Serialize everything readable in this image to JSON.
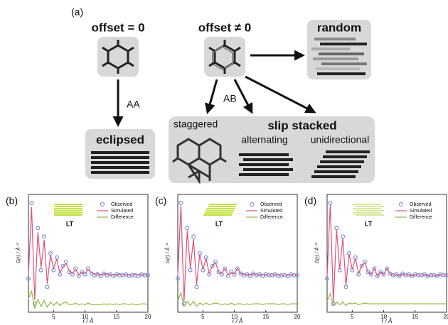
{
  "panel_label": "(a)",
  "diagram": {
    "offset_zero": "offset = 0",
    "offset_nonzero": "offset ≠ 0",
    "random": "random",
    "aa": "AA",
    "ab": "AB",
    "eclipsed": "eclipsed",
    "staggered": "staggered",
    "slip_stacked": "slip stacked",
    "alternating": "alternating",
    "unidirectional": "unidirectional"
  },
  "chart_data": [
    {
      "type": "line",
      "panel": "(b)",
      "inset_label": "LT",
      "x_label": "r / Å",
      "y_label": "G(r) / Å⁻²",
      "x": [
        1,
        1.5,
        2,
        2.5,
        3,
        3.5,
        4,
        4.5,
        5,
        5.5,
        6,
        6.5,
        7,
        7.5,
        8,
        8.5,
        9,
        9.5,
        10,
        10.5,
        11,
        11.5,
        12,
        12.5,
        13,
        13.5,
        14,
        14.5,
        15,
        15.5,
        16,
        16.5,
        17,
        17.5,
        18,
        18.5,
        19,
        19.5,
        20
      ],
      "xlim": [
        1,
        20
      ],
      "ylim": [
        -4,
        10
      ],
      "xticks": [
        5,
        10,
        15,
        20
      ],
      "series": [
        {
          "name": "Observed",
          "color": "#7b8fd6",
          "marker": "circle",
          "values": [
            0,
            9,
            -3,
            6,
            1,
            5,
            -1,
            3,
            1,
            2.5,
            0.5,
            1.5,
            2,
            0.8,
            0.5,
            1.2,
            0.3,
            0.8,
            0.5,
            1.2,
            0.6,
            0.4,
            0.5,
            0.3,
            0.6,
            0.4,
            0.5,
            0.3,
            0.5,
            0.4,
            0.4,
            0.5,
            0.3,
            0.4,
            0.4,
            0.3,
            0.5,
            0.4,
            0.4
          ]
        },
        {
          "name": "Simulated",
          "color": "#e0507a",
          "marker": "line",
          "values": [
            0.5,
            8.5,
            -2.5,
            5.5,
            1.3,
            4.6,
            -0.6,
            2.8,
            1.2,
            2.3,
            0.7,
            1.4,
            1.8,
            0.9,
            0.6,
            1.1,
            0.4,
            0.8,
            0.6,
            1.1,
            0.7,
            0.5,
            0.6,
            0.4,
            0.6,
            0.5,
            0.5,
            0.4,
            0.5,
            0.5,
            0.4,
            0.5,
            0.4,
            0.4,
            0.5,
            0.4,
            0.5,
            0.4,
            0.5
          ]
        },
        {
          "name": "Difference",
          "color": "#8dbb3c",
          "marker": "line",
          "values": [
            -2.4,
            -1.5,
            -3.5,
            -2.5,
            -3.3,
            -2.6,
            -3.4,
            -2.8,
            -3.2,
            -2.8,
            -3.2,
            -2.9,
            -2.8,
            -3.1,
            -3.1,
            -2.9,
            -3.1,
            -3,
            -3.1,
            -2.9,
            -3.1,
            -3.1,
            -3.1,
            -3.1,
            -3,
            -3.1,
            -3,
            -3.1,
            -3,
            -3.1,
            -3,
            -3,
            -3.1,
            -3,
            -3.1,
            -3.1,
            -3,
            -3,
            -3.1
          ]
        }
      ]
    },
    {
      "type": "line",
      "panel": "(c)",
      "inset_label": "LT",
      "x_label": "r / Å",
      "y_label": "G(r) / Å⁻²",
      "x": [
        1,
        1.5,
        2,
        2.5,
        3,
        3.5,
        4,
        4.5,
        5,
        5.5,
        6,
        6.5,
        7,
        7.5,
        8,
        8.5,
        9,
        9.5,
        10,
        10.5,
        11,
        11.5,
        12,
        12.5,
        13,
        13.5,
        14,
        14.5,
        15,
        15.5,
        16,
        16.5,
        17,
        17.5,
        18,
        18.5,
        19,
        19.5,
        20
      ],
      "xlim": [
        1,
        20
      ],
      "ylim": [
        -4,
        10
      ],
      "xticks": [
        5,
        10,
        15,
        20
      ],
      "series": [
        {
          "name": "Observed",
          "color": "#7b8fd6",
          "marker": "circle",
          "values": [
            0,
            9,
            -3,
            6,
            1,
            5,
            -1,
            3,
            1,
            2.5,
            0.5,
            1.5,
            2,
            0.8,
            0.5,
            1.2,
            0.3,
            0.8,
            0.5,
            1.2,
            0.6,
            0.4,
            0.5,
            0.3,
            0.6,
            0.4,
            0.5,
            0.3,
            0.5,
            0.4,
            0.4,
            0.5,
            0.3,
            0.4,
            0.4,
            0.3,
            0.5,
            0.4,
            0.4
          ]
        },
        {
          "name": "Simulated",
          "color": "#e0507a",
          "marker": "line",
          "values": [
            0.4,
            8.7,
            -2.7,
            5.7,
            1.2,
            4.7,
            -0.7,
            2.9,
            1.1,
            2.4,
            0.6,
            1.5,
            1.9,
            0.8,
            0.6,
            1.2,
            0.4,
            0.7,
            0.6,
            1.2,
            0.6,
            0.5,
            0.5,
            0.4,
            0.6,
            0.4,
            0.5,
            0.4,
            0.5,
            0.4,
            0.4,
            0.5,
            0.4,
            0.4,
            0.4,
            0.4,
            0.5,
            0.4,
            0.4
          ]
        },
        {
          "name": "Difference",
          "color": "#8dbb3c",
          "marker": "line",
          "values": [
            -2.6,
            -1.7,
            -3.3,
            -2.7,
            -3.2,
            -2.7,
            -3.3,
            -2.9,
            -3.1,
            -2.9,
            -3.1,
            -3,
            -2.9,
            -3,
            -3.1,
            -3,
            -3.1,
            -2.9,
            -3.1,
            -3,
            -3,
            -3.1,
            -3,
            -3.1,
            -3,
            -3,
            -3,
            -3.1,
            -3,
            -3,
            -3,
            -3,
            -3.1,
            -3,
            -3,
            -3.1,
            -3,
            -3,
            -3
          ]
        }
      ]
    },
    {
      "type": "line",
      "panel": "(d)",
      "inset_label": "LT",
      "x_label": "r / Å",
      "y_label": "G(r) / Å⁻²",
      "x": [
        1,
        1.5,
        2,
        2.5,
        3,
        3.5,
        4,
        4.5,
        5,
        5.5,
        6,
        6.5,
        7,
        7.5,
        8,
        8.5,
        9,
        9.5,
        10,
        10.5,
        11,
        11.5,
        12,
        12.5,
        13,
        13.5,
        14,
        14.5,
        15,
        15.5,
        16,
        16.5,
        17,
        17.5,
        18,
        18.5,
        19,
        19.5,
        20
      ],
      "xlim": [
        1,
        20
      ],
      "ylim": [
        -4,
        10
      ],
      "xticks": [
        5,
        10,
        15,
        20
      ],
      "series": [
        {
          "name": "Observed",
          "color": "#7b8fd6",
          "marker": "circle",
          "values": [
            0,
            9,
            -3,
            6,
            1,
            5,
            -1,
            3,
            1,
            2.5,
            0.5,
            1.5,
            2,
            0.8,
            0.5,
            1.2,
            0.3,
            0.8,
            0.5,
            1.2,
            0.6,
            0.4,
            0.5,
            0.3,
            0.6,
            0.4,
            0.5,
            0.3,
            0.5,
            0.4,
            0.4,
            0.5,
            0.3,
            0.4,
            0.4,
            0.3,
            0.5,
            0.4,
            0.4
          ]
        },
        {
          "name": "Simulated",
          "color": "#e0507a",
          "marker": "line",
          "values": [
            0.3,
            8.8,
            -2.8,
            5.8,
            1.1,
            4.8,
            -0.8,
            2.9,
            1.1,
            2.4,
            0.6,
            1.5,
            1.9,
            0.8,
            0.5,
            1.2,
            0.3,
            0.8,
            0.5,
            1.2,
            0.6,
            0.4,
            0.5,
            0.3,
            0.6,
            0.4,
            0.5,
            0.3,
            0.5,
            0.4,
            0.4,
            0.5,
            0.3,
            0.4,
            0.4,
            0.3,
            0.5,
            0.4,
            0.4
          ]
        },
        {
          "name": "Difference",
          "color": "#8dbb3c",
          "marker": "line",
          "values": [
            -2.7,
            -1.8,
            -3.2,
            -2.8,
            -3.1,
            -2.8,
            -3.2,
            -2.9,
            -3,
            -2.9,
            -3.1,
            -3,
            -2.9,
            -3,
            -3,
            -3,
            -3,
            -3,
            -3,
            -3,
            -3,
            -3,
            -3,
            -3,
            -3,
            -3,
            -3,
            -3,
            -3,
            -3,
            -3,
            -3,
            -3,
            -3,
            -3,
            -3,
            -3,
            -3,
            -3
          ]
        }
      ]
    }
  ]
}
